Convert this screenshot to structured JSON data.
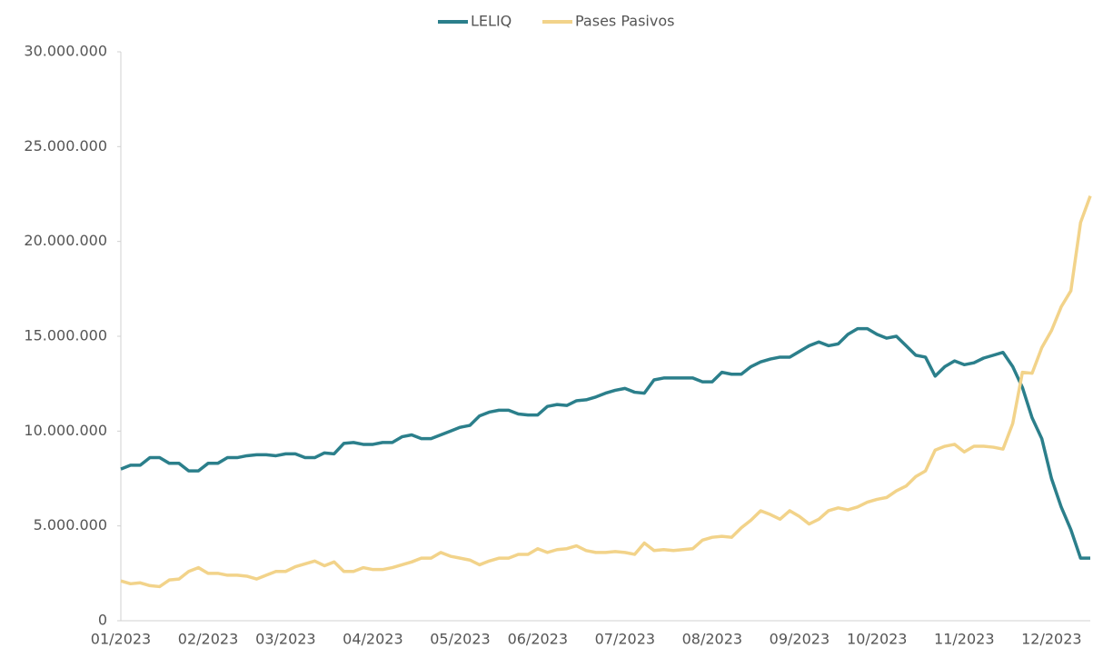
{
  "chart_data": {
    "type": "line",
    "categories": [
      "01/2023",
      null,
      null,
      null,
      null,
      null,
      null,
      null,
      null,
      "02/2023",
      null,
      null,
      null,
      null,
      null,
      null,
      null,
      "03/2023",
      null,
      null,
      null,
      null,
      null,
      null,
      null,
      null,
      "04/2023",
      null,
      null,
      null,
      null,
      null,
      null,
      null,
      null,
      "05/2023",
      null,
      null,
      null,
      null,
      null,
      null,
      null,
      "06/2023",
      null,
      null,
      null,
      null,
      null,
      null,
      null,
      null,
      "07/2023",
      null,
      null,
      null,
      null,
      null,
      null,
      null,
      null,
      "08/2023",
      null,
      null,
      null,
      null,
      null,
      null,
      null,
      null,
      "09/2023",
      null,
      null,
      null,
      null,
      null,
      null,
      null,
      "10/2023",
      null,
      null,
      null,
      null,
      null,
      null,
      null,
      null,
      "11/2023",
      null,
      null,
      null,
      null,
      null,
      null,
      null,
      null,
      "12/2023",
      null,
      null,
      null,
      null
    ],
    "series": [
      {
        "name": "LELIQ",
        "color": "#2b7f8b",
        "values": [
          8000000,
          8200000,
          8200000,
          8600000,
          8600000,
          8300000,
          8300000,
          7900000,
          7900000,
          8300000,
          8300000,
          8600000,
          8600000,
          8700000,
          8750000,
          8750000,
          8700000,
          8800000,
          8800000,
          8600000,
          8600000,
          8850000,
          8800000,
          9350000,
          9400000,
          9300000,
          9300000,
          9400000,
          9400000,
          9700000,
          9800000,
          9600000,
          9600000,
          9800000,
          10000000,
          10200000,
          10300000,
          10800000,
          11000000,
          11100000,
          11100000,
          10900000,
          10850000,
          10850000,
          11300000,
          11400000,
          11350000,
          11600000,
          11650000,
          11800000,
          12000000,
          12150000,
          12250000,
          12050000,
          12000000,
          12700000,
          12800000,
          12800000,
          12800000,
          12800000,
          12600000,
          12600000,
          13100000,
          13000000,
          13000000,
          13400000,
          13650000,
          13800000,
          13900000,
          13900000,
          14200000,
          14500000,
          14700000,
          14500000,
          14600000,
          15100000,
          15400000,
          15400000,
          15100000,
          14900000,
          15000000,
          14500000,
          14000000,
          13900000,
          12900000,
          13400000,
          13700000,
          13500000,
          13600000,
          13850000,
          14000000,
          14150000,
          13400000,
          12300000,
          10700000,
          9600000,
          7500000,
          6000000,
          4800000,
          3300000,
          3300000
        ]
      },
      {
        "name": "Pases Pasivos",
        "color": "#f2d38a",
        "values": [
          2100000,
          1950000,
          2000000,
          1850000,
          1800000,
          2150000,
          2200000,
          2600000,
          2800000,
          2500000,
          2500000,
          2400000,
          2400000,
          2350000,
          2200000,
          2400000,
          2600000,
          2600000,
          2850000,
          3000000,
          3150000,
          2900000,
          3100000,
          2600000,
          2600000,
          2800000,
          2700000,
          2700000,
          2800000,
          2950000,
          3100000,
          3300000,
          3300000,
          3600000,
          3400000,
          3300000,
          3200000,
          2950000,
          3150000,
          3300000,
          3300000,
          3500000,
          3500000,
          3800000,
          3600000,
          3750000,
          3800000,
          3950000,
          3700000,
          3600000,
          3600000,
          3650000,
          3600000,
          3500000,
          4100000,
          3700000,
          3750000,
          3700000,
          3750000,
          3800000,
          4250000,
          4400000,
          4450000,
          4400000,
          4900000,
          5300000,
          5800000,
          5600000,
          5350000,
          5800000,
          5500000,
          5100000,
          5350000,
          5800000,
          5950000,
          5850000,
          6000000,
          6250000,
          6400000,
          6500000,
          6850000,
          7100000,
          7600000,
          7900000,
          9000000,
          9200000,
          9300000,
          8900000,
          9200000,
          9200000,
          9150000,
          9050000,
          10400000,
          13100000,
          13050000,
          14400000,
          15300000,
          16550000,
          17400000,
          21000000,
          22400000
        ]
      }
    ],
    "ylim": [
      0,
      30000000
    ],
    "yticks": [
      0,
      {
        "value": 5000000,
        "label": "5.000.000"
      },
      {
        "value": 10000000,
        "label": "10.000.000"
      },
      {
        "value": 15000000,
        "label": "15.000.000"
      },
      {
        "value": 20000000,
        "label": "20.000.000"
      },
      {
        "value": 25000000,
        "label": "25.000.000"
      },
      {
        "value": 30000000,
        "label": "30.000.000"
      }
    ],
    "grid": false,
    "legend": "top"
  }
}
